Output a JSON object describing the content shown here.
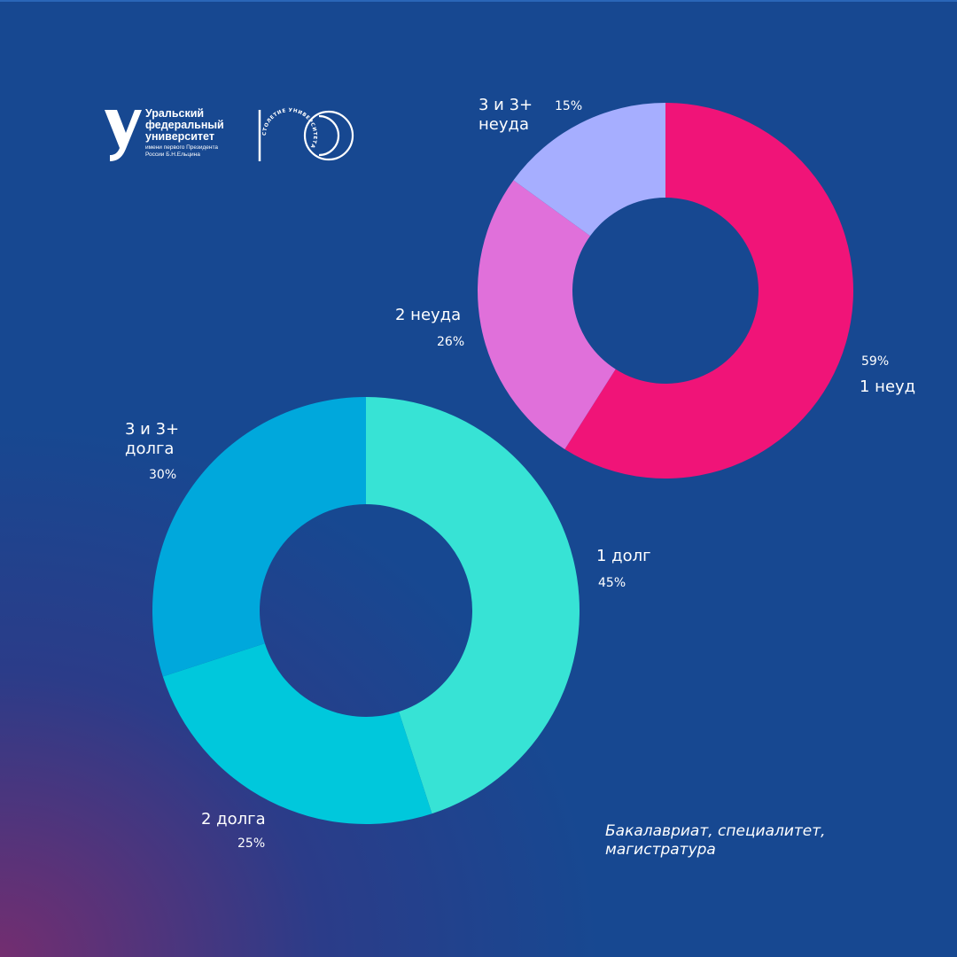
{
  "logo": {
    "name": "Уральский\nфедеральный\nуниверситет",
    "sub": "имени первого Президента\nРоссии Б.Н.Ельцина",
    "centenary_ring_text": "СТОЛЕТИЕ УНИВЕРСИТЕТА"
  },
  "caption": "Бакалавриат, специалитет,\nмагистратура",
  "colors": {
    "background": "#174891",
    "neud_1": "#f01478",
    "neud_2": "#e070da",
    "neud_3": "#a6aeff",
    "dolg_1": "#37e3d5",
    "dolg_2": "#00c8dc",
    "dolg_3": "#00a8dc"
  },
  "chart_data": [
    {
      "type": "pie",
      "donut": true,
      "categories": [
        "1 неуд",
        "2 неуда",
        "3 и 3+\nнеуда"
      ],
      "values": [
        59,
        26,
        15
      ],
      "value_labels": [
        "59%",
        "26%",
        "15%"
      ],
      "colors": [
        "#f01478",
        "#e070da",
        "#a6aeff"
      ]
    },
    {
      "type": "pie",
      "donut": true,
      "categories": [
        "1 долг",
        "2 долга",
        "3 и 3+\nдолга"
      ],
      "values": [
        45,
        25,
        30
      ],
      "value_labels": [
        "45%",
        "25%",
        "30%"
      ],
      "colors": [
        "#37e3d5",
        "#00c8dc",
        "#00a8dc"
      ]
    }
  ]
}
